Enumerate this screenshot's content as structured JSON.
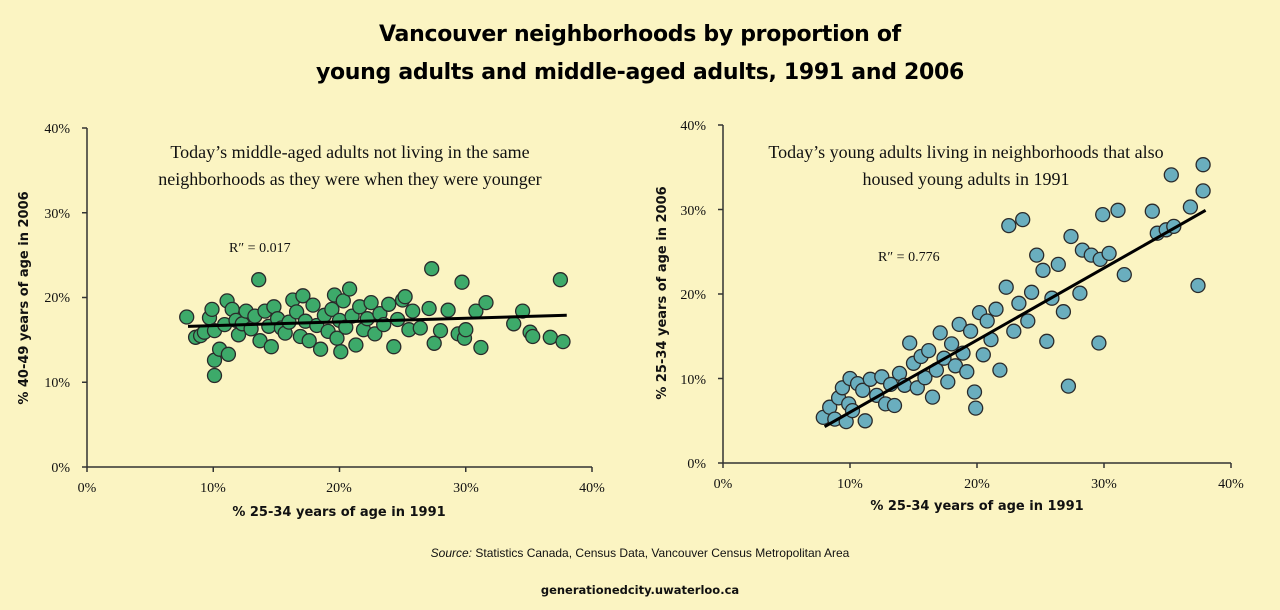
{
  "title_line1": "Vancouver neighborhoods by proportion of",
  "title_line2": "young adults and middle-aged adults, 1991 and 2006",
  "source_label": "Source:",
  "source_text": " Statistics Canada, Census Data, Vancouver Census Metropolitan Area",
  "site": "generationedcity.uwaterloo.ca",
  "colors": {
    "background": "#fbf4c2",
    "left_points": "#3daa6a",
    "right_points": "#6aaebe",
    "outline": "#2a2a2a"
  },
  "chart_data": [
    {
      "type": "scatter",
      "annotation_line1": "Today’s middle-aged adults not living in the same",
      "annotation_line2": "neighborhoods as they were when they were younger",
      "r2_label": "R″ = 0.017",
      "xlabel": "% 25-34 years of age in 1991",
      "ylabel": "% 40-49 years of age in 2006",
      "xlim": [
        0,
        40
      ],
      "ylim": [
        0,
        40
      ],
      "xticks": [
        "0%",
        "10%",
        "20%",
        "30%",
        "40%"
      ],
      "yticks": [
        "0%",
        "10%",
        "20%",
        "30%",
        "40%"
      ],
      "trendline": {
        "x": [
          8,
          38
        ],
        "y": [
          16.6,
          17.9
        ]
      },
      "points": [
        [
          7.9,
          17.7
        ],
        [
          8.6,
          15.3
        ],
        [
          9.0,
          15.5
        ],
        [
          9.3,
          15.9
        ],
        [
          9.7,
          17.6
        ],
        [
          9.9,
          18.6
        ],
        [
          10.1,
          16.1
        ],
        [
          10.1,
          12.6
        ],
        [
          10.1,
          10.8
        ],
        [
          10.5,
          13.9
        ],
        [
          10.9,
          16.8
        ],
        [
          11.1,
          19.6
        ],
        [
          11.2,
          13.3
        ],
        [
          11.5,
          18.6
        ],
        [
          11.8,
          17.3
        ],
        [
          12.0,
          15.6
        ],
        [
          12.3,
          16.9
        ],
        [
          12.6,
          18.4
        ],
        [
          13.0,
          16.3
        ],
        [
          13.3,
          17.8
        ],
        [
          13.6,
          22.1
        ],
        [
          13.7,
          14.9
        ],
        [
          14.1,
          18.4
        ],
        [
          14.4,
          16.6
        ],
        [
          14.6,
          14.2
        ],
        [
          14.8,
          18.9
        ],
        [
          15.1,
          17.5
        ],
        [
          15.4,
          16.4
        ],
        [
          15.7,
          15.8
        ],
        [
          16.0,
          17.1
        ],
        [
          16.3,
          19.7
        ],
        [
          16.6,
          18.3
        ],
        [
          16.9,
          15.4
        ],
        [
          17.1,
          20.2
        ],
        [
          17.3,
          17.2
        ],
        [
          17.6,
          14.9
        ],
        [
          17.9,
          19.1
        ],
        [
          18.2,
          16.7
        ],
        [
          18.5,
          13.9
        ],
        [
          18.8,
          17.9
        ],
        [
          19.1,
          16.0
        ],
        [
          19.4,
          18.6
        ],
        [
          19.6,
          20.3
        ],
        [
          19.8,
          15.2
        ],
        [
          20.0,
          17.3
        ],
        [
          20.1,
          13.6
        ],
        [
          20.3,
          19.6
        ],
        [
          20.5,
          16.5
        ],
        [
          20.8,
          21.0
        ],
        [
          21.0,
          17.8
        ],
        [
          21.3,
          14.4
        ],
        [
          21.6,
          18.9
        ],
        [
          21.9,
          16.2
        ],
        [
          22.2,
          17.5
        ],
        [
          22.5,
          19.4
        ],
        [
          22.8,
          15.7
        ],
        [
          23.2,
          18.1
        ],
        [
          23.5,
          16.8
        ],
        [
          23.9,
          19.2
        ],
        [
          24.3,
          14.2
        ],
        [
          24.6,
          17.4
        ],
        [
          25.0,
          19.7
        ],
        [
          25.2,
          20.1
        ],
        [
          25.5,
          16.2
        ],
        [
          25.8,
          18.4
        ],
        [
          26.4,
          16.4
        ],
        [
          27.1,
          18.7
        ],
        [
          27.3,
          23.4
        ],
        [
          27.5,
          14.6
        ],
        [
          28.0,
          16.1
        ],
        [
          28.6,
          18.5
        ],
        [
          29.4,
          15.7
        ],
        [
          29.7,
          21.8
        ],
        [
          29.9,
          15.2
        ],
        [
          30.0,
          16.2
        ],
        [
          30.8,
          18.4
        ],
        [
          31.2,
          14.1
        ],
        [
          31.6,
          19.4
        ],
        [
          33.8,
          16.9
        ],
        [
          34.5,
          18.4
        ],
        [
          35.1,
          15.9
        ],
        [
          35.3,
          15.4
        ],
        [
          36.7,
          15.3
        ],
        [
          37.5,
          22.1
        ],
        [
          37.7,
          14.8
        ]
      ]
    },
    {
      "type": "scatter",
      "annotation_line1": "Today’s young adults living in neighborhoods that also",
      "annotation_line2": "housed young adults in 1991",
      "r2_label": "R″ = 0.776",
      "xlabel": "% 25-34 years of age in 1991",
      "ylabel": "% 25-34 years of age in 2006",
      "xlim": [
        0,
        40
      ],
      "ylim": [
        0,
        40
      ],
      "xticks": [
        "0%",
        "10%",
        "20%",
        "30%",
        "40%"
      ],
      "yticks": [
        "0%",
        "10%",
        "20%",
        "30%",
        "40%"
      ],
      "trendline": {
        "x": [
          8,
          38
        ],
        "y": [
          4.3,
          29.9
        ]
      },
      "points": [
        [
          7.9,
          5.4
        ],
        [
          8.4,
          6.6
        ],
        [
          8.8,
          5.2
        ],
        [
          9.1,
          7.7
        ],
        [
          9.4,
          8.9
        ],
        [
          9.7,
          4.9
        ],
        [
          9.9,
          7.0
        ],
        [
          10.0,
          10.0
        ],
        [
          10.2,
          6.2
        ],
        [
          10.6,
          9.4
        ],
        [
          11.0,
          8.6
        ],
        [
          11.2,
          5.0
        ],
        [
          11.6,
          9.9
        ],
        [
          12.1,
          8.0
        ],
        [
          12.5,
          10.2
        ],
        [
          12.8,
          7.0
        ],
        [
          13.2,
          9.3
        ],
        [
          13.5,
          6.8
        ],
        [
          13.9,
          10.6
        ],
        [
          14.3,
          9.2
        ],
        [
          14.7,
          14.2
        ],
        [
          15.0,
          11.8
        ],
        [
          15.3,
          8.9
        ],
        [
          15.6,
          12.6
        ],
        [
          15.9,
          10.1
        ],
        [
          16.2,
          13.3
        ],
        [
          16.5,
          7.8
        ],
        [
          16.8,
          11.0
        ],
        [
          17.1,
          15.4
        ],
        [
          17.4,
          12.4
        ],
        [
          17.7,
          9.6
        ],
        [
          18.0,
          14.1
        ],
        [
          18.3,
          11.5
        ],
        [
          18.6,
          16.4
        ],
        [
          18.9,
          13.0
        ],
        [
          19.2,
          10.8
        ],
        [
          19.5,
          15.6
        ],
        [
          19.8,
          8.4
        ],
        [
          19.9,
          6.5
        ],
        [
          20.2,
          17.8
        ],
        [
          20.5,
          12.8
        ],
        [
          20.8,
          16.8
        ],
        [
          21.1,
          14.6
        ],
        [
          21.5,
          18.2
        ],
        [
          21.8,
          11.0
        ],
        [
          22.3,
          20.8
        ],
        [
          22.5,
          28.1
        ],
        [
          22.9,
          15.6
        ],
        [
          23.3,
          18.9
        ],
        [
          23.6,
          28.8
        ],
        [
          24.0,
          16.8
        ],
        [
          24.3,
          20.2
        ],
        [
          24.7,
          24.6
        ],
        [
          25.2,
          22.8
        ],
        [
          25.5,
          14.4
        ],
        [
          25.9,
          19.5
        ],
        [
          26.4,
          23.5
        ],
        [
          26.8,
          17.9
        ],
        [
          27.2,
          9.1
        ],
        [
          27.4,
          26.8
        ],
        [
          28.1,
          20.1
        ],
        [
          28.3,
          25.2
        ],
        [
          29.0,
          24.6
        ],
        [
          29.6,
          14.2
        ],
        [
          29.7,
          24.1
        ],
        [
          29.9,
          29.4
        ],
        [
          30.4,
          24.8
        ],
        [
          31.1,
          29.9
        ],
        [
          31.6,
          22.3
        ],
        [
          33.8,
          29.8
        ],
        [
          34.2,
          27.2
        ],
        [
          34.9,
          27.6
        ],
        [
          35.3,
          34.1
        ],
        [
          35.5,
          28.0
        ],
        [
          36.8,
          30.3
        ],
        [
          37.4,
          21.0
        ],
        [
          37.8,
          32.2
        ],
        [
          37.8,
          35.3
        ]
      ]
    }
  ]
}
